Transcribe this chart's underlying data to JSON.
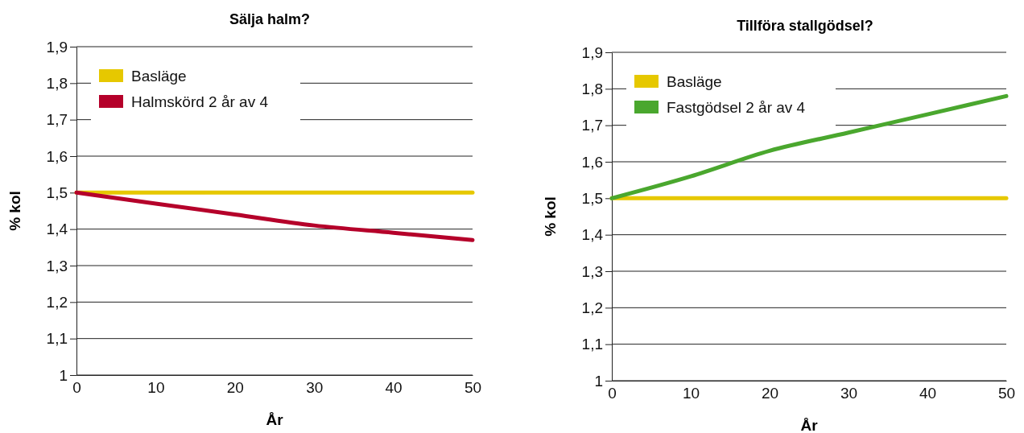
{
  "chart_data": [
    {
      "type": "line",
      "title": "Sälja halm?",
      "xlabel": "År",
      "ylabel": "% kol",
      "x": [
        0,
        10,
        20,
        30,
        40,
        50
      ],
      "xlim": [
        0,
        50
      ],
      "xticks": [
        0,
        10,
        20,
        30,
        40,
        50
      ],
      "ylim": [
        1,
        1.9
      ],
      "yticks": [
        {
          "value": 1,
          "label": "1"
        },
        {
          "value": 1.1,
          "label": "1,1"
        },
        {
          "value": 1.2,
          "label": "1,2"
        },
        {
          "value": 1.3,
          "label": "1,3"
        },
        {
          "value": 1.4,
          "label": "1,4"
        },
        {
          "value": 1.5,
          "label": "1,5"
        },
        {
          "value": 1.6,
          "label": "1,6"
        },
        {
          "value": 1.7,
          "label": "1,7"
        },
        {
          "value": 1.8,
          "label": "1,8"
        },
        {
          "value": 1.9,
          "label": "1,9"
        }
      ],
      "grid": "y",
      "legend": "top left",
      "marker": "none",
      "line_style": "solid",
      "series": [
        {
          "name": "Basläge",
          "color": "#e6c800",
          "values": [
            1.5,
            1.5,
            1.5,
            1.5,
            1.5,
            1.5
          ]
        },
        {
          "name": "Halmskörd 2 år av 4",
          "color": "#b5002a",
          "values": [
            1.5,
            1.47,
            1.44,
            1.41,
            1.39,
            1.37
          ]
        }
      ]
    },
    {
      "type": "line",
      "title": "Tillföra stallgödsel?",
      "xlabel": "År",
      "ylabel": "% kol",
      "x": [
        0,
        10,
        20,
        30,
        40,
        50
      ],
      "xlim": [
        0,
        50
      ],
      "xticks": [
        0,
        10,
        20,
        30,
        40,
        50
      ],
      "ylim": [
        1,
        1.9
      ],
      "yticks": [
        {
          "value": 1,
          "label": "1"
        },
        {
          "value": 1.1,
          "label": "1,1"
        },
        {
          "value": 1.2,
          "label": "1,2"
        },
        {
          "value": 1.3,
          "label": "1,3"
        },
        {
          "value": 1.4,
          "label": "1,4"
        },
        {
          "value": 1.5,
          "label": "1,5"
        },
        {
          "value": 1.6,
          "label": "1,6"
        },
        {
          "value": 1.7,
          "label": "1,7"
        },
        {
          "value": 1.8,
          "label": "1,8"
        },
        {
          "value": 1.9,
          "label": "1,9"
        }
      ],
      "grid": "y",
      "legend": "top left",
      "marker": "none",
      "line_style": "solid",
      "series": [
        {
          "name": "Basläge",
          "color": "#e6c800",
          "values": [
            1.5,
            1.5,
            1.5,
            1.5,
            1.5,
            1.5
          ]
        },
        {
          "name": "Fastgödsel 2 år av 4",
          "color": "#4aa72e",
          "values": [
            1.5,
            1.56,
            1.63,
            1.68,
            1.73,
            1.78
          ]
        }
      ]
    }
  ]
}
